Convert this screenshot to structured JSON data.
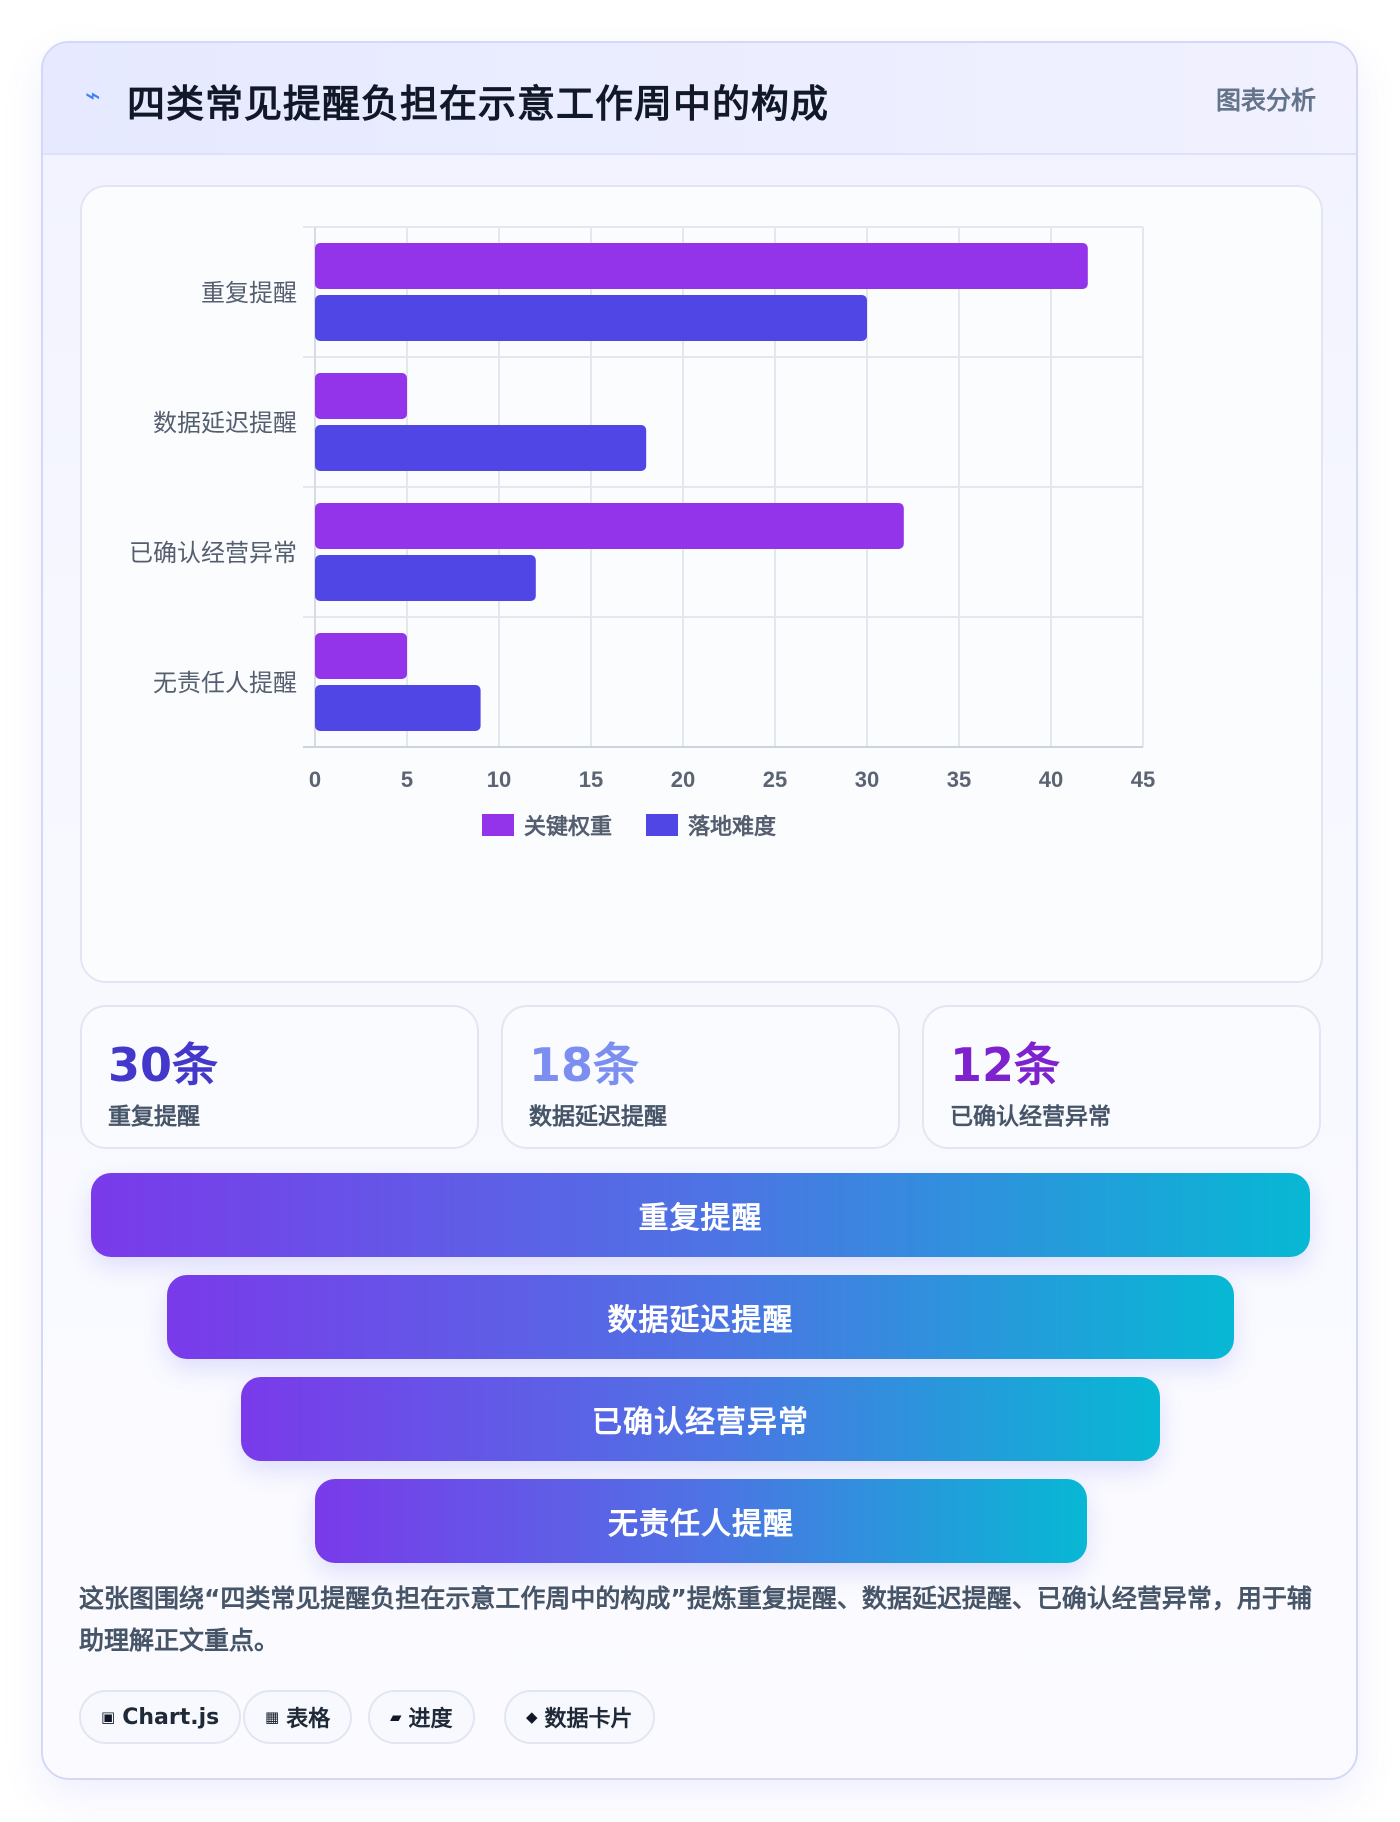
{
  "header": {
    "icon": "lightning-icon",
    "title": "四类常见提醒负担在示意工作周中的构成",
    "tag": "图表分析"
  },
  "chart_data": {
    "type": "bar",
    "orientation": "horizontal",
    "categories": [
      "重复提醒",
      "数据延迟提醒",
      "已确认经营异常",
      "无责任人提醒"
    ],
    "series": [
      {
        "name": "关键权重",
        "color": "#9333ea",
        "values": [
          42,
          5,
          32,
          5
        ]
      },
      {
        "name": "落地难度",
        "color": "#4f46e5",
        "values": [
          30,
          18,
          12,
          9
        ]
      }
    ],
    "xlim": [
      0,
      45
    ],
    "xticks": [
      0,
      5,
      10,
      15,
      20,
      25,
      30,
      35,
      40,
      45
    ],
    "grid": true,
    "legend": "bottom"
  },
  "stats": [
    {
      "value": "30条",
      "label": "重复提醒",
      "color": "#4338ca"
    },
    {
      "value": "18条",
      "label": "数据延迟提醒",
      "color": "#7c8ff0"
    },
    {
      "value": "12条",
      "label": "已确认经营异常",
      "color": "#7e22ce"
    }
  ],
  "funnel": [
    "重复提醒",
    "数据延迟提醒",
    "已确认经营异常",
    "无责任人提醒"
  ],
  "description": "这张图围绕“四类常见提醒负担在示意工作周中的构成”提炼重复提醒、数据延迟提醒、已确认经营异常，用于辅助理解正文重点。",
  "chips": [
    {
      "icon": "▣",
      "icon_name": "chart-icon",
      "label": "Chart.js"
    },
    {
      "icon": "▦",
      "icon_name": "table-icon",
      "label": "表格"
    },
    {
      "icon": "▰",
      "icon_name": "progress-icon",
      "label": "进度"
    },
    {
      "icon": "◆",
      "icon_name": "diamond-icon",
      "label": "数据卡片"
    }
  ]
}
